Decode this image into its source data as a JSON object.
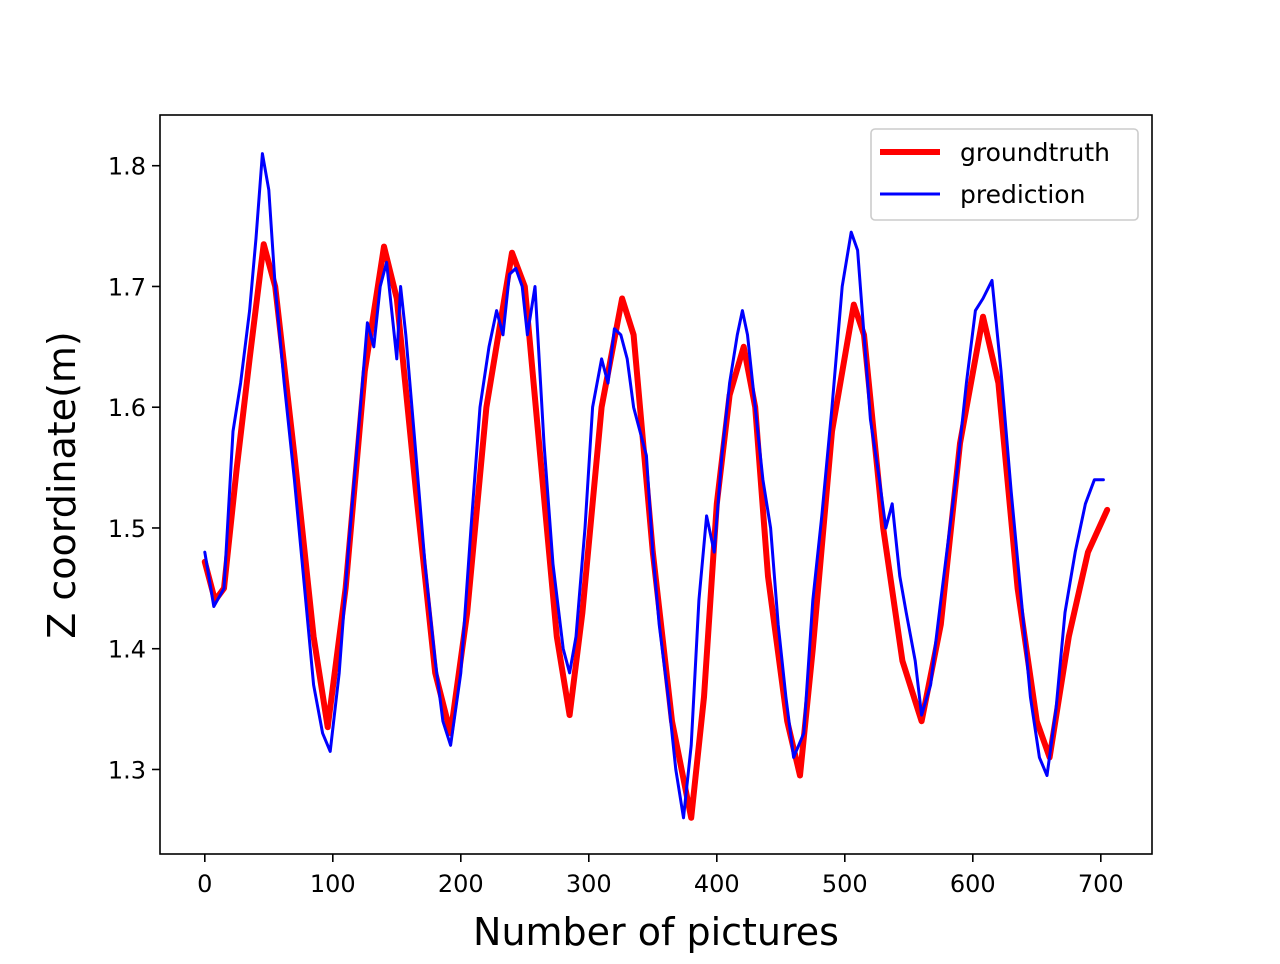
{
  "chart_data": {
    "type": "line",
    "title": "",
    "xlabel": "Number of pictures",
    "ylabel": "Z coordinate(m)",
    "xlim": [
      -35,
      740
    ],
    "ylim": [
      1.23,
      1.842
    ],
    "xticks": [
      0,
      100,
      200,
      300,
      400,
      500,
      600,
      700
    ],
    "yticks": [
      1.3,
      1.4,
      1.5,
      1.6,
      1.7,
      1.8
    ],
    "xtick_labels": [
      "0",
      "100",
      "200",
      "300",
      "400",
      "500",
      "600",
      "700"
    ],
    "ytick_labels": [
      "1.3",
      "1.4",
      "1.5",
      "1.6",
      "1.7",
      "1.8"
    ],
    "grid": false,
    "legend_position": "top-right",
    "series": [
      {
        "name": "groundtruth",
        "color": "#ff0000",
        "x": [
          0,
          8,
          15,
          25,
          35,
          46,
          55,
          70,
          85,
          96,
          110,
          125,
          140,
          150,
          165,
          180,
          192,
          205,
          220,
          240,
          250,
          262,
          275,
          285,
          295,
          310,
          326,
          335,
          350,
          365,
          380,
          390,
          400,
          410,
          421,
          430,
          440,
          455,
          465,
          475,
          490,
          507,
          515,
          530,
          545,
          560,
          575,
          590,
          608,
          620,
          635,
          650,
          660,
          675,
          690,
          705
        ],
        "y": [
          1.472,
          1.44,
          1.45,
          1.55,
          1.64,
          1.735,
          1.7,
          1.56,
          1.41,
          1.335,
          1.45,
          1.63,
          1.733,
          1.69,
          1.53,
          1.38,
          1.33,
          1.43,
          1.6,
          1.728,
          1.7,
          1.56,
          1.41,
          1.345,
          1.43,
          1.6,
          1.69,
          1.66,
          1.48,
          1.34,
          1.26,
          1.36,
          1.52,
          1.61,
          1.65,
          1.6,
          1.46,
          1.34,
          1.295,
          1.4,
          1.58,
          1.685,
          1.66,
          1.5,
          1.39,
          1.34,
          1.42,
          1.57,
          1.675,
          1.62,
          1.45,
          1.34,
          1.31,
          1.41,
          1.48,
          1.515
        ]
      },
      {
        "name": "prediction",
        "color": "#0000ff",
        "x": [
          0,
          7,
          15,
          22,
          28,
          35,
          40,
          45,
          50,
          55,
          62,
          70,
          78,
          85,
          92,
          98,
          105,
          112,
          120,
          127,
          132,
          137,
          142,
          146,
          150,
          153,
          157,
          165,
          172,
          180,
          186,
          192,
          200,
          208,
          215,
          222,
          228,
          233,
          238,
          243,
          248,
          252,
          258,
          265,
          272,
          280,
          285,
          290,
          297,
          303,
          310,
          315,
          320,
          325,
          330,
          335,
          340,
          345,
          350,
          355,
          362,
          368,
          374,
          380,
          386,
          392,
          398,
          404,
          410,
          416,
          420,
          424,
          430,
          436,
          442,
          448,
          454,
          460,
          468,
          475,
          482,
          490,
          498,
          505,
          510,
          515,
          520,
          527,
          532,
          537,
          543,
          548,
          555,
          560,
          567,
          575,
          582,
          588,
          595,
          602,
          608,
          615,
          622,
          630,
          638,
          645,
          652,
          658,
          665,
          672,
          680,
          688,
          695,
          702
        ],
        "y": [
          1.48,
          1.435,
          1.45,
          1.58,
          1.62,
          1.68,
          1.74,
          1.81,
          1.78,
          1.7,
          1.62,
          1.54,
          1.45,
          1.37,
          1.33,
          1.315,
          1.38,
          1.48,
          1.58,
          1.67,
          1.65,
          1.7,
          1.72,
          1.68,
          1.64,
          1.7,
          1.66,
          1.56,
          1.47,
          1.39,
          1.34,
          1.32,
          1.38,
          1.5,
          1.6,
          1.65,
          1.68,
          1.66,
          1.71,
          1.715,
          1.7,
          1.66,
          1.7,
          1.57,
          1.47,
          1.4,
          1.38,
          1.41,
          1.5,
          1.6,
          1.64,
          1.62,
          1.665,
          1.66,
          1.64,
          1.6,
          1.58,
          1.56,
          1.48,
          1.42,
          1.36,
          1.3,
          1.26,
          1.32,
          1.44,
          1.51,
          1.48,
          1.56,
          1.62,
          1.66,
          1.68,
          1.66,
          1.6,
          1.54,
          1.5,
          1.42,
          1.36,
          1.31,
          1.33,
          1.44,
          1.51,
          1.6,
          1.7,
          1.745,
          1.73,
          1.66,
          1.59,
          1.54,
          1.5,
          1.52,
          1.46,
          1.43,
          1.39,
          1.345,
          1.37,
          1.44,
          1.5,
          1.55,
          1.62,
          1.68,
          1.69,
          1.705,
          1.63,
          1.53,
          1.44,
          1.36,
          1.31,
          1.295,
          1.35,
          1.43,
          1.48,
          1.52,
          1.54,
          1.54
        ]
      }
    ]
  }
}
